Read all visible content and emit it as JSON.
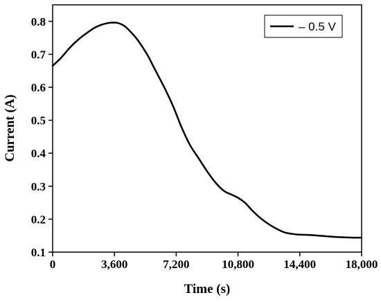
{
  "chart_data": {
    "type": "line",
    "xlabel": "Time (s)",
    "ylabel": "Current (A)",
    "xlim": [
      0,
      18000
    ],
    "ylim": [
      0.1,
      0.85
    ],
    "x_ticks": [
      0,
      3600,
      7200,
      10800,
      14400,
      18000
    ],
    "x_tick_labels": [
      "0",
      "3,600",
      "7,200",
      "10,800",
      "14,400",
      "18,000"
    ],
    "y_ticks": [
      0.1,
      0.2,
      0.3,
      0.4,
      0.5,
      0.6,
      0.7,
      0.8
    ],
    "y_tick_labels": [
      "0.1",
      "0.2",
      "0.3",
      "0.4",
      "0.5",
      "0.6",
      "0.7",
      "0.8"
    ],
    "grid": false,
    "legend_position": "top-right",
    "series": [
      {
        "name": "– 0.5 V",
        "color": "#000000",
        "x": [
          0,
          500,
          1000,
          1500,
          2000,
          2500,
          3000,
          3400,
          3800,
          4200,
          4600,
          5000,
          5500,
          6000,
          6500,
          7000,
          7500,
          8000,
          8500,
          9000,
          9500,
          10000,
          10400,
          10800,
          11200,
          11600,
          12000,
          12500,
          13000,
          13500,
          14000,
          14400,
          15000,
          15500,
          16000,
          16500,
          17000,
          17500,
          18000
        ],
        "y": [
          0.665,
          0.69,
          0.72,
          0.745,
          0.765,
          0.782,
          0.792,
          0.796,
          0.795,
          0.785,
          0.765,
          0.74,
          0.7,
          0.65,
          0.6,
          0.545,
          0.48,
          0.425,
          0.385,
          0.345,
          0.31,
          0.285,
          0.275,
          0.265,
          0.25,
          0.228,
          0.208,
          0.188,
          0.172,
          0.16,
          0.155,
          0.153,
          0.152,
          0.15,
          0.148,
          0.146,
          0.145,
          0.144,
          0.144
        ]
      }
    ]
  }
}
